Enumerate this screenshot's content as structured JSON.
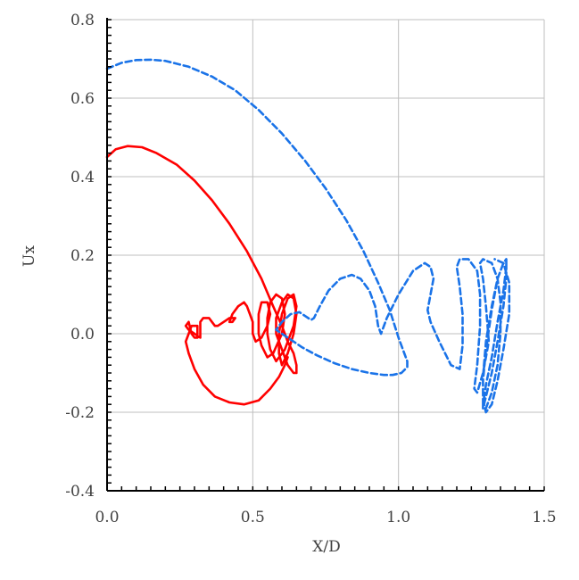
{
  "chart_data": {
    "type": "line",
    "title": "",
    "xlabel": "X/D",
    "ylabel": "Ux",
    "xlim": [
      0.0,
      1.5
    ],
    "ylim": [
      -0.4,
      0.8
    ],
    "grid": true,
    "x_ticks": [
      "0.0",
      "0.5",
      "1.0",
      "1.5"
    ],
    "y_ticks": [
      "-0.4",
      "-0.2",
      "0.0",
      "0.2",
      "0.4",
      "0.6",
      "0.8"
    ],
    "series": [
      {
        "color": "#ff0000",
        "style": "solid",
        "x": [
          0.0,
          0.03,
          0.07,
          0.12,
          0.17,
          0.24,
          0.3,
          0.36,
          0.42,
          0.48,
          0.53,
          0.57,
          0.6,
          0.62,
          0.64,
          0.65,
          0.65,
          0.64,
          0.62,
          0.6,
          0.58,
          0.58,
          0.6,
          0.62,
          0.64,
          0.65,
          0.64,
          0.62,
          0.6,
          0.59,
          0.59,
          0.6,
          0.62,
          0.64,
          0.65,
          0.64,
          0.61,
          0.58,
          0.56,
          0.55,
          0.55,
          0.56,
          0.58,
          0.6,
          0.61,
          0.6,
          0.57,
          0.55,
          0.53,
          0.52,
          0.52,
          0.53,
          0.55,
          0.56,
          0.55,
          0.53,
          0.51,
          0.5,
          0.5,
          0.49,
          0.48,
          0.47,
          0.45,
          0.43,
          0.42,
          0.43,
          0.44,
          0.44,
          0.42,
          0.4,
          0.38,
          0.37,
          0.36,
          0.35,
          0.33,
          0.32,
          0.32,
          0.32,
          0.32,
          0.3,
          0.28,
          0.27,
          0.28,
          0.29,
          0.3,
          0.31,
          0.31,
          0.31,
          0.29,
          0.28,
          0.27,
          0.28,
          0.3,
          0.33,
          0.37,
          0.42,
          0.47,
          0.52,
          0.56,
          0.59,
          0.61,
          0.62
        ],
        "y": [
          0.45,
          0.47,
          0.478,
          0.475,
          0.46,
          0.43,
          0.39,
          0.34,
          0.28,
          0.21,
          0.14,
          0.07,
          0.02,
          -0.02,
          -0.05,
          -0.08,
          -0.1,
          -0.1,
          -0.08,
          -0.04,
          0.0,
          0.04,
          0.08,
          0.1,
          0.09,
          0.05,
          0.0,
          -0.05,
          -0.08,
          -0.05,
          0.0,
          0.05,
          0.09,
          0.1,
          0.07,
          0.02,
          -0.04,
          -0.07,
          -0.04,
          0.0,
          0.04,
          0.08,
          0.1,
          0.09,
          0.05,
          0.0,
          -0.05,
          -0.06,
          -0.03,
          0.0,
          0.05,
          0.08,
          0.08,
          0.05,
          0.02,
          -0.01,
          -0.02,
          0.0,
          0.03,
          0.05,
          0.07,
          0.08,
          0.07,
          0.05,
          0.03,
          0.03,
          0.04,
          0.04,
          0.04,
          0.03,
          0.02,
          0.02,
          0.03,
          0.04,
          0.04,
          0.03,
          0.01,
          0.0,
          -0.01,
          0.0,
          0.01,
          0.02,
          0.03,
          0.0,
          -0.01,
          -0.01,
          0.0,
          0.02,
          0.02,
          0.0,
          -0.02,
          -0.05,
          -0.09,
          -0.13,
          -0.16,
          -0.175,
          -0.18,
          -0.17,
          -0.14,
          -0.11,
          -0.08,
          -0.06
        ]
      },
      {
        "color": "#1a73e8",
        "style": "dashed",
        "x": [
          0.0,
          0.05,
          0.1,
          0.15,
          0.2,
          0.28,
          0.36,
          0.44,
          0.52,
          0.6,
          0.68,
          0.75,
          0.82,
          0.88,
          0.93,
          0.97,
          1.0,
          1.02,
          1.03,
          1.03,
          1.01,
          0.98,
          0.95,
          0.9,
          0.84,
          0.78,
          0.72,
          0.67,
          0.63,
          0.6,
          0.58,
          0.6,
          0.63,
          0.66,
          0.68,
          0.7,
          0.71,
          0.73,
          0.76,
          0.8,
          0.84,
          0.87,
          0.9,
          0.92,
          0.93,
          0.94,
          0.96,
          1.0,
          1.05,
          1.09,
          1.11,
          1.12,
          1.11,
          1.1,
          1.11,
          1.14,
          1.18,
          1.21,
          1.22,
          1.22,
          1.21,
          1.2,
          1.21,
          1.24,
          1.27,
          1.28,
          1.28,
          1.27,
          1.26,
          1.27,
          1.29,
          1.31,
          1.3,
          1.29,
          1.28,
          1.29,
          1.32,
          1.34,
          1.35,
          1.35,
          1.34,
          1.32,
          1.3,
          1.29,
          1.29,
          1.3,
          1.32,
          1.34,
          1.36,
          1.37,
          1.37,
          1.36,
          1.34,
          1.32,
          1.3,
          1.29,
          1.29,
          1.3,
          1.32,
          1.34,
          1.36,
          1.37,
          1.37,
          1.36,
          1.34,
          1.32,
          1.3,
          1.29,
          1.29,
          1.3,
          1.32,
          1.34,
          1.36,
          1.38,
          1.38,
          1.36,
          1.33
        ],
        "y": [
          0.675,
          0.69,
          0.697,
          0.698,
          0.695,
          0.68,
          0.655,
          0.62,
          0.57,
          0.51,
          0.44,
          0.37,
          0.29,
          0.21,
          0.13,
          0.06,
          -0.01,
          -0.05,
          -0.07,
          -0.085,
          -0.1,
          -0.105,
          -0.105,
          -0.1,
          -0.09,
          -0.075,
          -0.055,
          -0.035,
          -0.015,
          0.0,
          0.01,
          0.03,
          0.05,
          0.055,
          0.045,
          0.035,
          0.04,
          0.07,
          0.11,
          0.14,
          0.15,
          0.14,
          0.11,
          0.07,
          0.02,
          0.0,
          0.04,
          0.1,
          0.16,
          0.18,
          0.17,
          0.14,
          0.1,
          0.06,
          0.03,
          -0.02,
          -0.08,
          -0.09,
          -0.03,
          0.05,
          0.12,
          0.17,
          0.19,
          0.19,
          0.16,
          0.1,
          0.02,
          -0.08,
          -0.14,
          -0.15,
          -0.1,
          -0.02,
          0.07,
          0.14,
          0.18,
          0.19,
          0.18,
          0.14,
          0.08,
          0.0,
          -0.08,
          -0.15,
          -0.19,
          -0.18,
          -0.12,
          -0.04,
          0.06,
          0.14,
          0.18,
          0.19,
          0.17,
          0.11,
          0.03,
          -0.06,
          -0.13,
          -0.18,
          -0.19,
          -0.16,
          -0.1,
          -0.02,
          0.07,
          0.14,
          0.18,
          0.18,
          0.14,
          0.07,
          -0.02,
          -0.11,
          -0.17,
          -0.2,
          -0.18,
          -0.12,
          -0.04,
          0.05,
          0.13,
          0.18,
          0.19
        ]
      }
    ]
  }
}
